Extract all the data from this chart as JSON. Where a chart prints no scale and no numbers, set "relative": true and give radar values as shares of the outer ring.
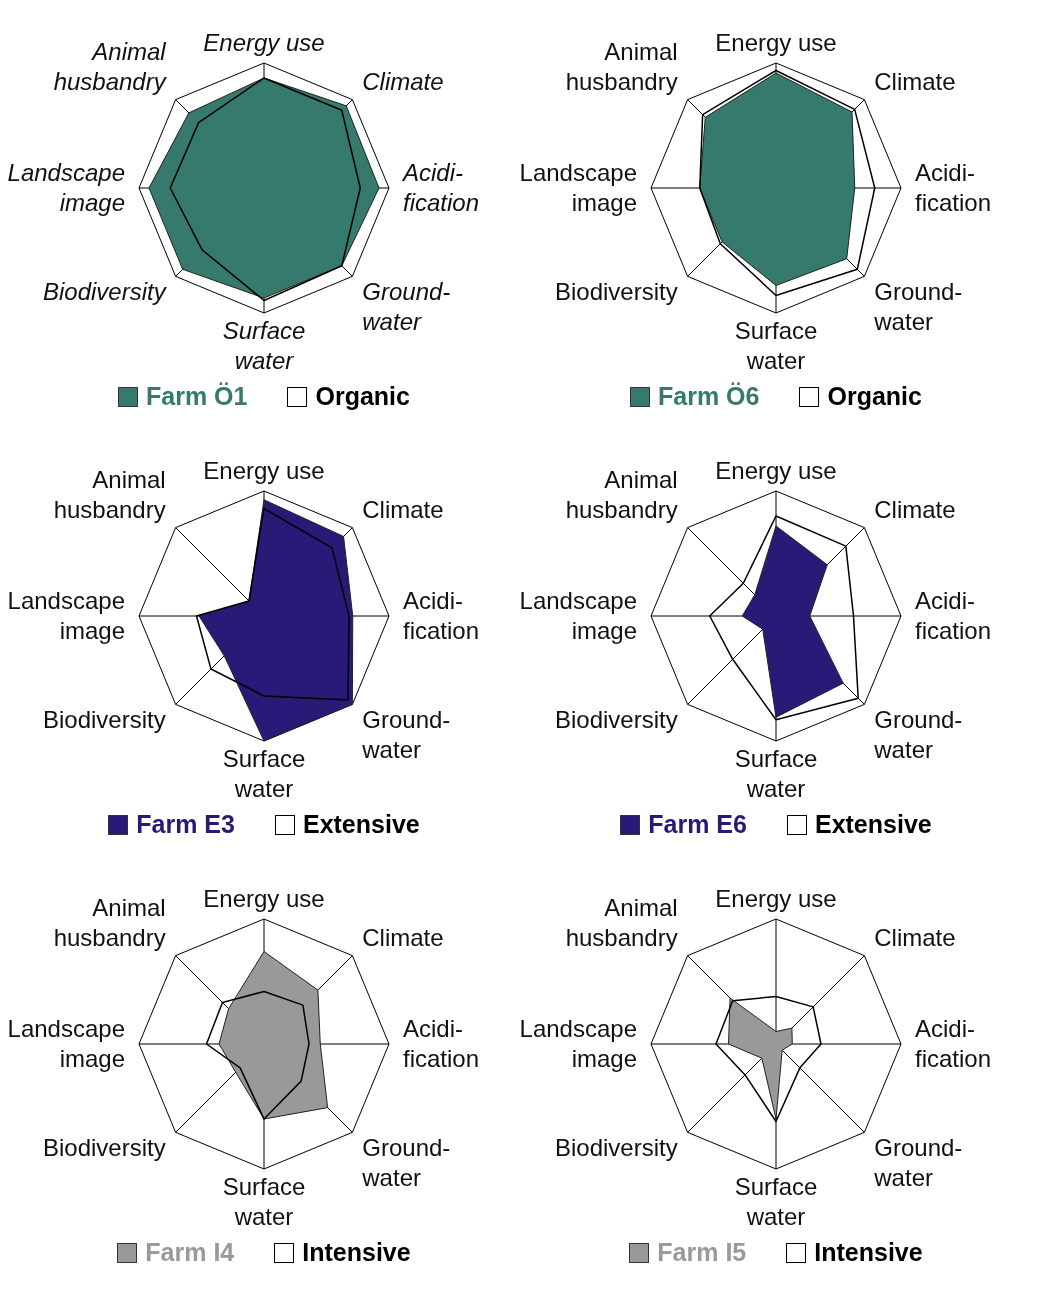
{
  "chart_data": [
    {
      "type": "radar",
      "relative": true,
      "grid": true,
      "legend": "bottom",
      "categories": [
        "Energy use",
        "Climate",
        "Acidi-\nfication",
        "Ground-\nwater",
        "Surface\nwater",
        "Biodiversity",
        "Landscape\nimage",
        "Animal\nhusbandry"
      ],
      "series": [
        {
          "name": "Farm Ö1",
          "color": "#357a6c",
          "values": [
            0.88,
            0.93,
            0.92,
            0.88,
            0.88,
            0.92,
            0.92,
            0.85
          ]
        },
        {
          "name": "Organic",
          "color": "#000000",
          "values": [
            0.88,
            0.88,
            0.77,
            0.88,
            0.9,
            0.7,
            0.75,
            0.74
          ]
        }
      ]
    },
    {
      "type": "radar",
      "relative": true,
      "grid": true,
      "legend": "bottom",
      "categories": [
        "Energy use",
        "Climate",
        "Acidi-\nfication",
        "Ground-\nwater",
        "Surface\nwater",
        "Biodiversity",
        "Landscape\nimage",
        "Animal\nhusbandry"
      ],
      "series": [
        {
          "name": "Farm Ö6",
          "color": "#357a6c",
          "values": [
            0.92,
            0.86,
            0.63,
            0.8,
            0.78,
            0.61,
            0.61,
            0.8
          ]
        },
        {
          "name": "Organic",
          "color": "#000000",
          "values": [
            0.94,
            0.89,
            0.79,
            0.92,
            0.86,
            0.63,
            0.61,
            0.83
          ]
        }
      ]
    },
    {
      "type": "radar",
      "relative": true,
      "grid": true,
      "legend": "bottom",
      "categories": [
        "Energy use",
        "Climate",
        "Acidi-\nfication",
        "Ground-\nwater",
        "Surface\nwater",
        "Biodiversity",
        "Landscape\nimage",
        "Animal\nhusbandry"
      ],
      "series": [
        {
          "name": "Farm E3",
          "color": "#2a1a78",
          "values": [
            0.93,
            0.9,
            0.71,
            1,
            1,
            0.45,
            0.52,
            0.17
          ]
        },
        {
          "name": "Extensive",
          "color": "#000000",
          "values": [
            0.86,
            0.77,
            0.68,
            0.95,
            0.64,
            0.6,
            0.54,
            0.17
          ]
        }
      ]
    },
    {
      "type": "radar",
      "relative": true,
      "grid": true,
      "legend": "bottom",
      "categories": [
        "Energy use",
        "Climate",
        "Acidi-\nfication",
        "Ground-\nwater",
        "Surface\nwater",
        "Biodiversity",
        "Landscape\nimage",
        "Animal\nhusbandry"
      ],
      "series": [
        {
          "name": "Farm E6",
          "color": "#2a1a78",
          "values": [
            0.72,
            0.58,
            0.27,
            0.76,
            0.81,
            0.15,
            0.27,
            0.24
          ]
        },
        {
          "name": "Extensive",
          "color": "#000000",
          "values": [
            0.8,
            0.79,
            0.62,
            0.93,
            0.83,
            0.49,
            0.53,
            0.37
          ]
        }
      ]
    },
    {
      "type": "radar",
      "relative": true,
      "grid": true,
      "legend": "bottom",
      "categories": [
        "Energy use",
        "Climate",
        "Acidi-\nfication",
        "Ground-\nwater",
        "Surface\nwater",
        "Biodiversity",
        "Landscape\nimage",
        "Animal\nhusbandry"
      ],
      "series": [
        {
          "name": "Farm I4",
          "color": "#999999",
          "values": [
            0.74,
            0.61,
            0.45,
            0.72,
            0.6,
            0.32,
            0.36,
            0.4
          ]
        },
        {
          "name": "Intensive",
          "color": "#000000",
          "values": [
            0.42,
            0.44,
            0.36,
            0.42,
            0.6,
            0.27,
            0.46,
            0.47
          ]
        }
      ]
    },
    {
      "type": "radar",
      "relative": true,
      "grid": true,
      "legend": "bottom",
      "categories": [
        "Energy use",
        "Climate",
        "Acidi-\nfication",
        "Ground-\nwater",
        "Surface\nwater",
        "Biodiversity",
        "Landscape\nimage",
        "Animal\nhusbandry"
      ],
      "series": [
        {
          "name": "Farm I5",
          "color": "#999999",
          "values": [
            0.1,
            0.18,
            0.13,
            0.07,
            0.6,
            0.16,
            0.38,
            0.52
          ]
        },
        {
          "name": "Intensive",
          "color": "#000000",
          "values": [
            0.38,
            0.42,
            0.36,
            0.27,
            0.62,
            0.35,
            0.48,
            0.49
          ]
        }
      ]
    }
  ]
}
